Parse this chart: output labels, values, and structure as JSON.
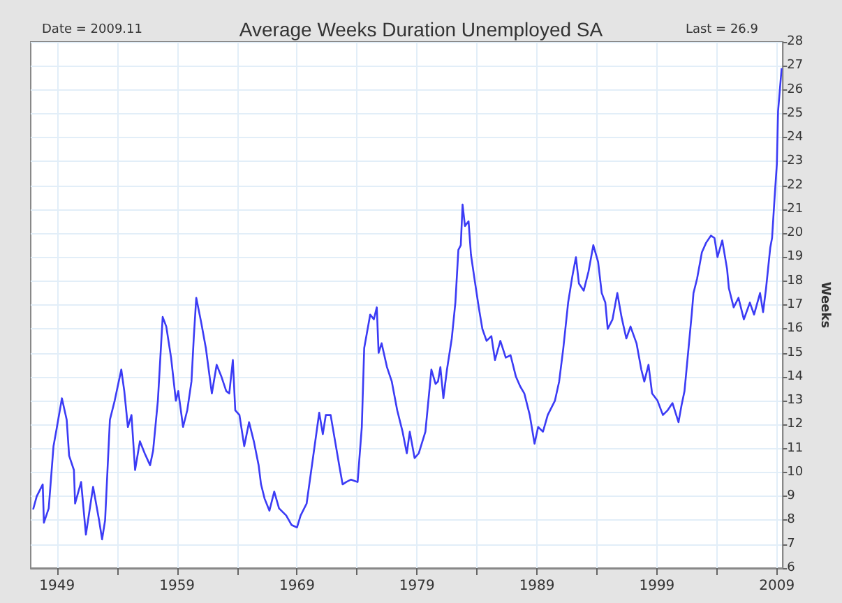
{
  "chart_data": {
    "type": "line",
    "title": "Average Weeks Duration Unemployed SA",
    "ylabel": "Weeks",
    "annotations": [
      "Date = 2009.11",
      "Last = 26.9"
    ],
    "series": [
      {
        "color": "#3b3bf5",
        "x": [
          1947.0,
          1947.3,
          1947.8,
          1947.9,
          1948.3,
          1948.7,
          1948.95,
          1949.4,
          1949.8,
          1950.0,
          1950.4,
          1950.5,
          1951.0,
          1951.4,
          1952.0,
          1952.5,
          1952.75,
          1953.0,
          1953.4,
          1953.8,
          1954.35,
          1954.6,
          1954.9,
          1955.2,
          1955.5,
          1955.9,
          1956.3,
          1956.75,
          1957.0,
          1957.4,
          1957.8,
          1958.1,
          1958.5,
          1958.9,
          1959.1,
          1959.5,
          1959.85,
          1960.2,
          1960.4,
          1960.6,
          1961.0,
          1961.4,
          1961.9,
          1962.3,
          1962.7,
          1963.1,
          1963.35,
          1963.65,
          1963.85,
          1964.2,
          1964.6,
          1965.0,
          1965.4,
          1965.8,
          1966.0,
          1966.3,
          1966.7,
          1967.1,
          1967.5,
          1968.1,
          1968.55,
          1969.0,
          1969.3,
          1969.8,
          1970.3,
          1970.85,
          1971.15,
          1971.4,
          1971.8,
          1972.55,
          1972.8,
          1973.1,
          1973.5,
          1974.05,
          1974.4,
          1974.6,
          1975.1,
          1975.4,
          1975.65,
          1975.8,
          1976.05,
          1976.5,
          1976.9,
          1977.35,
          1977.8,
          1978.15,
          1978.4,
          1978.8,
          1979.15,
          1979.7,
          1980.2,
          1980.55,
          1980.75,
          1980.95,
          1981.2,
          1981.5,
          1981.9,
          1982.2,
          1982.45,
          1982.65,
          1982.8,
          1983.0,
          1983.3,
          1983.5,
          1983.85,
          1984.15,
          1984.45,
          1984.8,
          1985.2,
          1985.5,
          1985.95,
          1986.4,
          1986.8,
          1987.25,
          1987.6,
          1987.95,
          1988.4,
          1988.8,
          1989.1,
          1989.5,
          1989.9,
          1990.5,
          1990.85,
          1991.2,
          1991.6,
          1991.95,
          1992.25,
          1992.5,
          1992.9,
          1993.3,
          1993.7,
          1994.1,
          1994.4,
          1994.7,
          1994.9,
          1995.3,
          1995.7,
          1996.05,
          1996.45,
          1996.8,
          1997.3,
          1997.7,
          1997.95,
          1998.3,
          1998.6,
          1999.05,
          1999.5,
          1999.9,
          2000.3,
          2000.8,
          2001.05,
          2001.3,
          2001.6,
          2001.9,
          2002.05,
          2002.35,
          2002.75,
          2003.1,
          2003.5,
          2003.8,
          2004.05,
          2004.45,
          2004.85,
          2005.0,
          2005.4,
          2005.8,
          2006.25,
          2006.75,
          2007.1,
          2007.6,
          2007.85,
          2008.1,
          2008.45,
          2008.6,
          2008.8,
          2009.0,
          2009.1,
          2009.4
        ],
        "values": [
          8.45,
          9.0,
          9.5,
          7.9,
          8.5,
          11.1,
          11.8,
          13.1,
          12.2,
          10.7,
          10.1,
          8.7,
          9.6,
          7.4,
          9.4,
          8.0,
          7.2,
          8.0,
          12.2,
          13.0,
          14.3,
          13.4,
          11.9,
          12.4,
          10.1,
          11.3,
          10.8,
          10.3,
          10.9,
          13.0,
          16.5,
          16.1,
          14.8,
          13.0,
          13.4,
          11.9,
          12.6,
          13.8,
          15.7,
          17.3,
          16.3,
          15.2,
          13.3,
          14.5,
          14.0,
          13.4,
          13.3,
          14.7,
          12.6,
          12.4,
          11.1,
          12.1,
          11.3,
          10.3,
          9.5,
          8.9,
          8.4,
          9.2,
          8.5,
          8.2,
          7.8,
          7.7,
          8.2,
          8.7,
          10.5,
          12.5,
          11.6,
          12.4,
          12.4,
          10.2,
          9.5,
          9.6,
          9.7,
          9.6,
          11.9,
          15.2,
          16.6,
          16.4,
          16.9,
          15.0,
          15.4,
          14.4,
          13.8,
          12.6,
          11.7,
          10.8,
          11.7,
          10.6,
          10.8,
          11.7,
          14.3,
          13.7,
          13.8,
          14.4,
          13.1,
          14.3,
          15.6,
          17.1,
          19.3,
          19.5,
          21.2,
          20.3,
          20.5,
          19.1,
          17.9,
          16.9,
          16.0,
          15.5,
          15.7,
          14.7,
          15.5,
          14.8,
          14.9,
          14.0,
          13.6,
          13.3,
          12.4,
          11.2,
          11.9,
          11.7,
          12.4,
          13.0,
          13.8,
          15.2,
          17.1,
          18.2,
          19.0,
          17.9,
          17.6,
          18.4,
          19.5,
          18.8,
          17.5,
          17.1,
          16.0,
          16.4,
          17.5,
          16.5,
          15.6,
          16.1,
          15.4,
          14.3,
          13.8,
          14.5,
          13.3,
          13.0,
          12.4,
          12.6,
          12.9,
          12.1,
          12.8,
          13.4,
          15.0,
          16.6,
          17.5,
          18.1,
          19.2,
          19.6,
          19.9,
          19.8,
          19.0,
          19.7,
          18.5,
          17.7,
          16.9,
          17.3,
          16.4,
          17.1,
          16.6,
          17.5,
          16.7,
          17.7,
          19.4,
          19.8,
          21.4,
          22.9,
          25.1,
          26.9
        ]
      }
    ],
    "xlim": [
      1946.8,
      2009.5
    ],
    "xticks": [
      1949,
      {
        "value": 1954,
        "label": null
      },
      1959,
      {
        "value": 1964,
        "label": null
      },
      1969,
      {
        "value": 1974,
        "label": null
      },
      1979,
      {
        "value": 1984,
        "label": null
      },
      1989,
      {
        "value": 1994,
        "label": null
      },
      1999,
      {
        "value": 2004,
        "label": null
      },
      2009
    ],
    "ylim": [
      6,
      28
    ],
    "yticks": [
      6,
      7,
      8,
      9,
      10,
      11,
      12,
      13,
      14,
      15,
      16,
      17,
      18,
      19,
      20,
      21,
      22,
      23,
      24,
      25,
      26,
      27,
      28
    ],
    "grid": true,
    "marker": "none",
    "line_style": "solid"
  }
}
